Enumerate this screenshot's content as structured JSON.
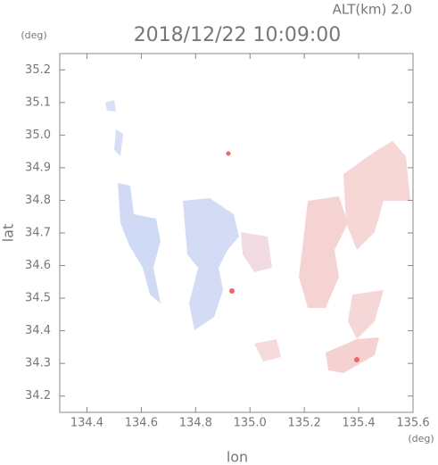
{
  "chart_data": {
    "type": "map",
    "title": "2018/12/22 10:09:00",
    "altitude_label": "ALT(km) 2.0",
    "x_unit": "(deg)",
    "y_unit": "(deg)",
    "x_label": "lon",
    "y_label": "lat",
    "xlim": [
      134.3,
      135.6
    ],
    "ylim": [
      34.15,
      35.25
    ],
    "xticks": [
      134.4,
      134.6,
      134.8,
      {
        "value": 135.0,
        "label": "135.0"
      },
      135.2,
      135.4,
      135.6
    ],
    "yticks": [
      34.2,
      34.3,
      34.4,
      34.5,
      34.6,
      34.7,
      34.8,
      34.9,
      {
        "value": 35.0,
        "label": "35.0"
      },
      35.1,
      35.2
    ]
  }
}
